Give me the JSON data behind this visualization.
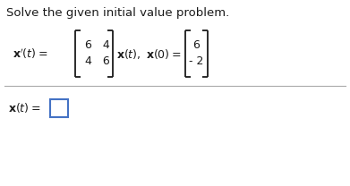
{
  "title": "Solve the given initial value problem.",
  "background_color": "#ffffff",
  "text_color": "#1a1a1a",
  "box_color": "#4472c4",
  "line_color": "#aaaaaa",
  "font_size_title": 9.5,
  "font_size_eq": 9.0,
  "font_size_matrix": 9.0
}
